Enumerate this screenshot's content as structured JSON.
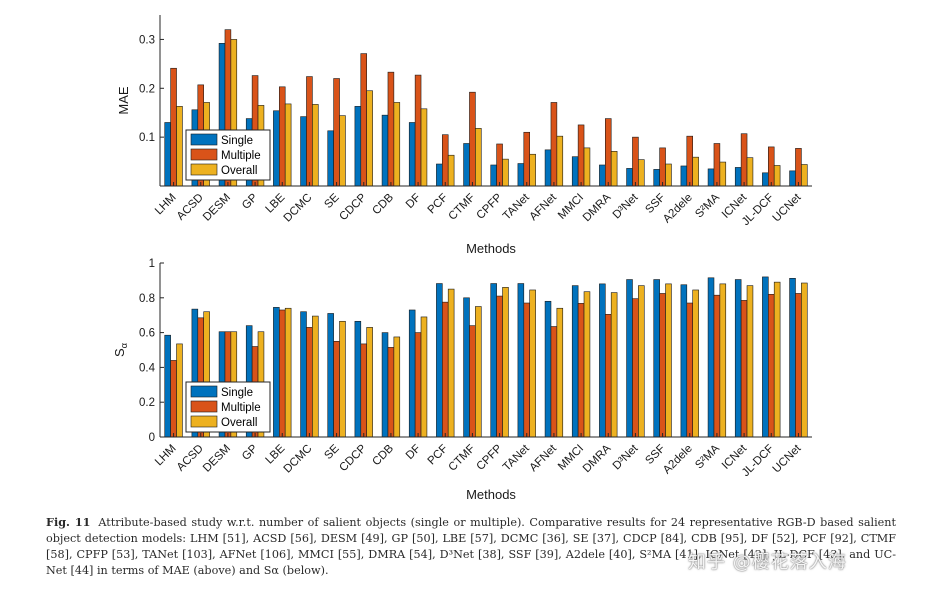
{
  "colors": {
    "single": "#0072BD",
    "multiple": "#D95319",
    "overall": "#EDB120",
    "axis": "#262626"
  },
  "chart_data": [
    {
      "type": "bar",
      "title": "",
      "xlabel": "Methods",
      "ylabel": "MAE",
      "ylim": [
        0,
        0.35
      ],
      "yticks": [
        0.1,
        0.2,
        0.3
      ],
      "ytick_labels": [
        "0.1",
        "0.2",
        "0.3"
      ],
      "legend_position": "lower-left",
      "categories": [
        "LHM",
        "ACSD",
        "DESM",
        "GP",
        "LBE",
        "DCMC",
        "SE",
        "CDCP",
        "CDB",
        "DF",
        "PCF",
        "CTMF",
        "CPFP",
        "TANet",
        "AFNet",
        "MMCI",
        "DMRA",
        "D³Net",
        "SSF",
        "A2dele",
        "S²MA",
        "ICNet",
        "JL-DCF",
        "UCNet"
      ],
      "series": [
        {
          "name": "Single",
          "values": [
            0.13,
            0.156,
            0.292,
            0.138,
            0.154,
            0.142,
            0.113,
            0.163,
            0.145,
            0.13,
            0.045,
            0.087,
            0.043,
            0.046,
            0.074,
            0.06,
            0.043,
            0.036,
            0.034,
            0.041,
            0.035,
            0.038,
            0.027,
            0.031
          ]
        },
        {
          "name": "Multiple",
          "values": [
            0.241,
            0.207,
            0.32,
            0.226,
            0.203,
            0.224,
            0.22,
            0.271,
            0.233,
            0.227,
            0.105,
            0.192,
            0.086,
            0.11,
            0.171,
            0.125,
            0.138,
            0.1,
            0.078,
            0.102,
            0.087,
            0.107,
            0.08,
            0.077
          ]
        },
        {
          "name": "Overall",
          "values": [
            0.163,
            0.171,
            0.3,
            0.165,
            0.168,
            0.167,
            0.144,
            0.195,
            0.171,
            0.158,
            0.063,
            0.118,
            0.055,
            0.065,
            0.102,
            0.078,
            0.071,
            0.054,
            0.045,
            0.059,
            0.049,
            0.058,
            0.042,
            0.044
          ]
        }
      ]
    },
    {
      "type": "bar",
      "title": "",
      "xlabel": "Methods",
      "ylabel": "S",
      "ylabel_subscript": "α",
      "ylim": [
        0,
        1
      ],
      "yticks": [
        0,
        0.2,
        0.4,
        0.6,
        0.8,
        1
      ],
      "ytick_labels": [
        "0",
        "0.2",
        "0.4",
        "0.6",
        "0.8",
        "1"
      ],
      "legend_position": "lower-left",
      "categories": [
        "LHM",
        "ACSD",
        "DESM",
        "GP",
        "LBE",
        "DCMC",
        "SE",
        "CDCP",
        "CDB",
        "DF",
        "PCF",
        "CTMF",
        "CPFP",
        "TANet",
        "AFNet",
        "MMCI",
        "DMRA",
        "D³Net",
        "SSF",
        "A2dele",
        "S²MA",
        "ICNet",
        "JL-DCF",
        "UCNet"
      ],
      "series": [
        {
          "name": "Single",
          "values": [
            0.585,
            0.735,
            0.605,
            0.64,
            0.745,
            0.72,
            0.71,
            0.665,
            0.6,
            0.73,
            0.882,
            0.8,
            0.882,
            0.882,
            0.78,
            0.87,
            0.88,
            0.905,
            0.905,
            0.875,
            0.915,
            0.905,
            0.92,
            0.912
          ]
        },
        {
          "name": "Multiple",
          "values": [
            0.44,
            0.685,
            0.605,
            0.52,
            0.73,
            0.63,
            0.55,
            0.535,
            0.515,
            0.6,
            0.775,
            0.64,
            0.81,
            0.77,
            0.635,
            0.768,
            0.705,
            0.795,
            0.825,
            0.77,
            0.815,
            0.785,
            0.82,
            0.825
          ]
        },
        {
          "name": "Overall",
          "values": [
            0.535,
            0.72,
            0.605,
            0.605,
            0.74,
            0.695,
            0.665,
            0.63,
            0.575,
            0.69,
            0.85,
            0.75,
            0.86,
            0.845,
            0.74,
            0.835,
            0.83,
            0.87,
            0.88,
            0.845,
            0.88,
            0.87,
            0.89,
            0.885
          ]
        }
      ]
    }
  ],
  "caption": {
    "label": "Fig. 11",
    "text": "Attribute-based study w.r.t. number of salient objects (single or multiple). Comparative results for 24 representative RGB-D based salient object detection models: LHM [51], ACSD [56], DESM [49], GP [50], LBE [57], DCMC [36], SE [37], CDCP [84], CDB [95], DF [52], PCF [92], CTMF [58], CPFP [53], TANet [103], AFNet [106], MMCI [55], DMRA [54], D³Net [38], SSF [39], A2dele [40], S²MA [41], ICNet [42], JL-DCF [43], and UC-Net [44] in terms of MAE (above) and Sα (below)."
  },
  "watermark": "知乎 @樱花落入海"
}
